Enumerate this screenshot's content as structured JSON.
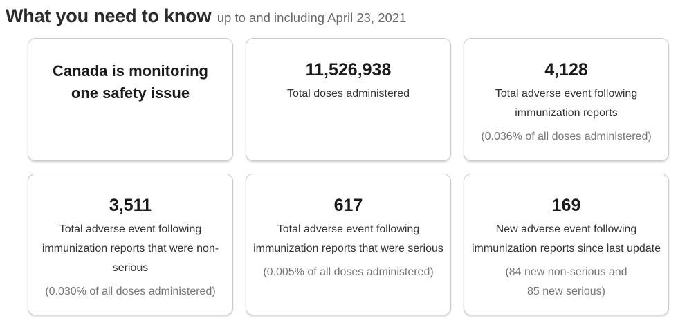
{
  "header": {
    "title": "What you need to know",
    "subtitle": "up to and including April 23, 2021"
  },
  "cards": [
    {
      "name": "safety-issues",
      "headline": "Canada is monitoring one safety issue"
    },
    {
      "name": "total-doses",
      "value": "11,526,938",
      "label": "Total doses administered"
    },
    {
      "name": "total-aefi-reports",
      "value": "4,128",
      "label": "Total adverse event following immunization reports",
      "note": "(0.036% of all doses administered)"
    },
    {
      "name": "non-serious-reports",
      "value": "3,511",
      "label": "Total adverse event following immunization reports that were non-serious",
      "note": "(0.030% of all doses administered)"
    },
    {
      "name": "serious-reports",
      "value": "617",
      "label": "Total adverse event following immunization reports that were serious",
      "note": "(0.005% of all doses administered)"
    },
    {
      "name": "new-reports-since-update",
      "value": "169",
      "label": "New adverse event following immunization reports since last update",
      "note": "(84 new non-serious and",
      "note2": "85 new serious)"
    }
  ],
  "colors": {
    "title_text": "#2b2b2b",
    "subtitle_text": "#696969",
    "card_border": "#c9c9c9",
    "stat_text": "#1b1b1b",
    "label_text": "#333333",
    "note_text": "#767676",
    "background": "#ffffff"
  }
}
